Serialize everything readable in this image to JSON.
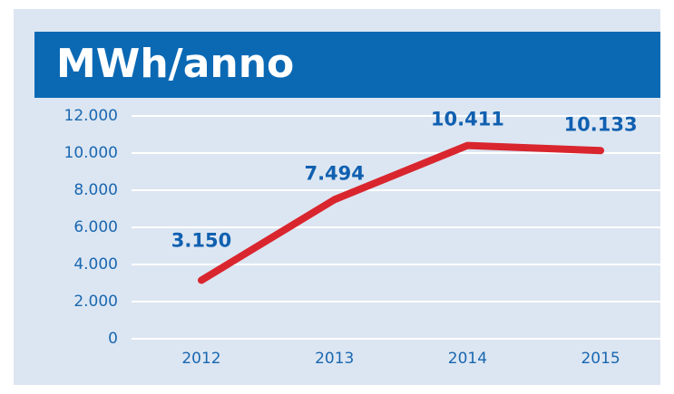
{
  "chart_data": {
    "type": "line",
    "title": "MWh/anno",
    "categories": [
      "2012",
      "2013",
      "2014",
      "2015"
    ],
    "series": [
      {
        "color": "#d9262e",
        "values": [
          3150,
          7494,
          10411,
          10133
        ],
        "value_labels": [
          "3.150",
          "7.494",
          "10.411",
          "10.133"
        ]
      }
    ],
    "ylim": [
      0,
      12000
    ],
    "yticks": [
      0,
      {
        "value": 2000,
        "label": "2.000"
      },
      {
        "value": 4000,
        "label": "4.000"
      },
      {
        "value": 6000,
        "label": "6.000"
      },
      {
        "value": 8000,
        "label": "8.000"
      },
      {
        "value": 10000,
        "label": "10.000"
      },
      {
        "value": 12000,
        "label": "12.000"
      }
    ],
    "grid": true
  }
}
